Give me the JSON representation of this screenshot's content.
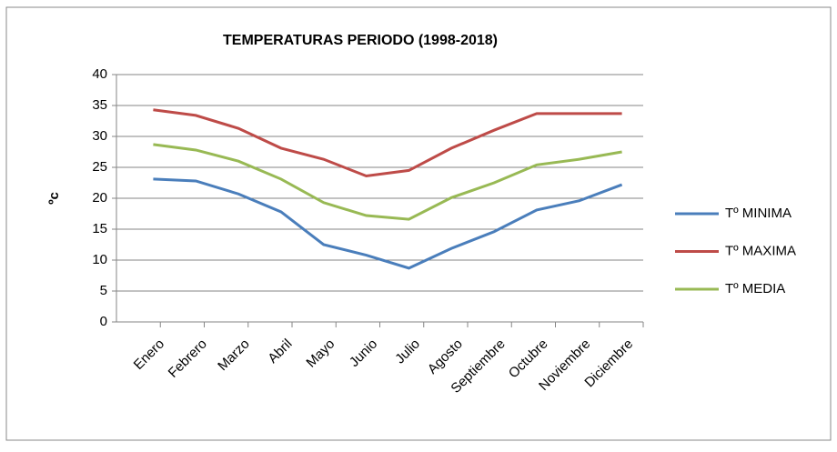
{
  "chart_data": {
    "type": "line",
    "title": "TEMPERATURAS PERIODO  (1998-2018)",
    "y_label": "ºc",
    "categories": [
      "Enero",
      "Febrero",
      "Marzo",
      "Abril",
      "Mayo",
      "Junio",
      "Julio",
      "Agosto",
      "Septiembre",
      "Octubre",
      "Noviembre",
      "Diciembre"
    ],
    "series": [
      {
        "name": "Tº MINIMA",
        "color": "#4a7ebb",
        "values": [
          23.1,
          22.8,
          20.7,
          17.8,
          12.5,
          10.8,
          8.7,
          11.9,
          14.6,
          18.1,
          19.6,
          22.2
        ]
      },
      {
        "name": "Tº MAXIMA",
        "color": "#be4b48",
        "values": [
          34.3,
          33.4,
          31.3,
          28.1,
          26.3,
          23.6,
          24.5,
          28.1,
          31.0,
          33.7,
          33.7,
          33.7
        ]
      },
      {
        "name": "Tº MEDIA",
        "color": "#98b954",
        "values": [
          28.7,
          27.8,
          26.0,
          23.1,
          19.3,
          17.2,
          16.6,
          20.1,
          22.5,
          25.4,
          26.3,
          27.5
        ]
      }
    ],
    "ylim": [
      0,
      40
    ],
    "yticks": [
      0,
      5,
      10,
      15,
      20,
      25,
      30,
      35,
      40
    ],
    "grid": true,
    "legend": "right"
  }
}
